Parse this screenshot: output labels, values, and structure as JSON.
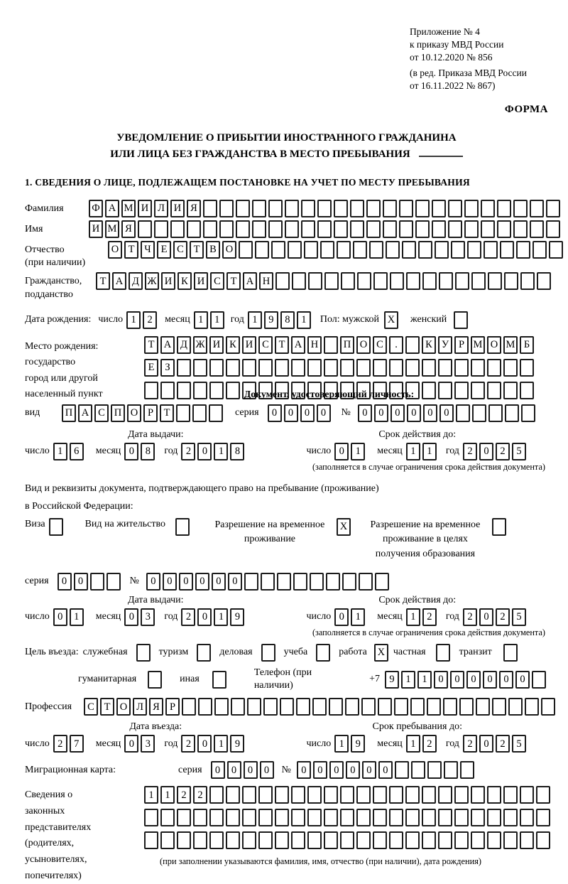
{
  "header": {
    "ref_lines": [
      "Приложение № 4",
      "к приказу МВД России",
      "от 10.12.2020 № 856",
      "(в ред. Приказа МВД России",
      "от 16.11.2022 № 867)"
    ],
    "form_label": "ФОРМА"
  },
  "title": {
    "line1": "УВЕДОМЛЕНИЕ О ПРИБЫТИИ ИНОСТРАННОГО ГРАЖДАНИНА",
    "line2": "ИЛИ ЛИЦА БЕЗ ГРАЖДАНСТВА В МЕСТО ПРЕБЫВАНИЯ"
  },
  "section1": {
    "title": "1. СВЕДЕНИЯ О ЛИЦЕ, ПОДЛЕЖАЩЕМ ПОСТАНОВКЕ НА УЧЕТ ПО МЕСТУ ПРЕБЫВАНИЯ"
  },
  "labels": {
    "day": "число",
    "month": "месяц",
    "year": "год",
    "series": "серия",
    "number": "№"
  },
  "surname": {
    "label": "Фамилия",
    "cells": {
      "chars": "ФАМИЛИЯ",
      "len": 29
    }
  },
  "given_name": {
    "label": "Имя",
    "cells": {
      "chars": "ИМЯ",
      "len": 29
    }
  },
  "patronymic": {
    "label_lines": [
      "Отчество",
      "(при наличии)"
    ],
    "cells": {
      "chars": "ОТЧЕСТВО",
      "len": 28
    }
  },
  "citizenship": {
    "label_lines": [
      "Гражданство,",
      "подданство"
    ],
    "cells": {
      "chars": "ТАДЖИКИСТАН",
      "len": 28
    }
  },
  "birth": {
    "label": "Дата рождения:",
    "day": "12",
    "month": "11",
    "year": "1981",
    "gender_label": "Пол: мужской",
    "male": {
      "chars": "X",
      "len": 1
    },
    "female_label": "женский",
    "female": {
      "chars": "",
      "len": 1
    }
  },
  "birthplace": {
    "label_lines": [
      "Место рождения:",
      "государство",
      "город или другой",
      "населенный пункт"
    ],
    "rows": [
      {
        "chars": "ТАДЖИКИСТАН ПОС. КУРМОМБ",
        "len": 24
      },
      {
        "chars": "ЕЗ",
        "len": 24
      },
      {
        "chars": "",
        "len": 24
      }
    ]
  },
  "identity_doc": {
    "heading": "Документ, удостоверяющий личность:",
    "kind_label": "вид",
    "kind": {
      "chars": "ПАСПОРТ",
      "len": 10
    },
    "series": {
      "chars": "0000",
      "len": 4
    },
    "number": {
      "chars": "000000",
      "len": 11
    },
    "issue_title": "Дата выдачи:",
    "issue": {
      "day": "16",
      "month": "08",
      "year": "2018"
    },
    "expiry_title": "Срок действия до:",
    "expiry": {
      "day": "01",
      "month": "11",
      "year": "2025"
    },
    "note": "(заполняется в случае ограничения срока действия документа)"
  },
  "residence": {
    "intro1": "Вид и реквизиты документа, подтверждающего право на пребывание (проживание)",
    "intro2": "в Российской Федерации:",
    "visa": {
      "label": "Виза",
      "value": {
        "chars": "",
        "len": 1
      }
    },
    "residence_permit": {
      "label": "Вид на жительство",
      "value": {
        "chars": "",
        "len": 1
      }
    },
    "rvp": {
      "label1": "Разрешение на временное",
      "label2": "проживание",
      "value": {
        "chars": "X",
        "len": 1
      }
    },
    "rvp_edu": {
      "label1": "Разрешение на временное",
      "label2": "проживание в целях",
      "label3": "получения образования",
      "value": {
        "chars": "",
        "len": 1
      }
    },
    "series": {
      "chars": "00",
      "len": 4
    },
    "number": {
      "chars": "000000",
      "len": 15
    },
    "issue_title": "Дата выдачи:",
    "issue": {
      "day": "01",
      "month": "03",
      "year": "2019"
    },
    "expiry_title": "Срок действия до:",
    "expiry": {
      "day": "01",
      "month": "12",
      "year": "2025"
    },
    "note": "(заполняется в случае ограничения срока действия документа)"
  },
  "purpose": {
    "label": "Цель въезда:",
    "options": [
      {
        "label": "служебная",
        "value": {
          "chars": "",
          "len": 1
        }
      },
      {
        "label": "туризм",
        "value": {
          "chars": "",
          "len": 1
        }
      },
      {
        "label": "деловая",
        "value": {
          "chars": "",
          "len": 1
        }
      },
      {
        "label": "учеба",
        "value": {
          "chars": "",
          "len": 1
        }
      },
      {
        "label": "работа",
        "value": {
          "chars": "X",
          "len": 1
        }
      },
      {
        "label": "частная",
        "value": {
          "chars": "",
          "len": 1
        }
      },
      {
        "label": "транзит",
        "value": {
          "chars": "",
          "len": 1
        }
      }
    ],
    "options2": [
      {
        "label": "гуманитарная",
        "value": {
          "chars": "",
          "len": 1
        }
      },
      {
        "label": "иная",
        "value": {
          "chars": "",
          "len": 1
        }
      }
    ],
    "phone_label": "Телефон (при наличии)",
    "phone_prefix": "+7",
    "phone": {
      "chars": "911000000",
      "len": 10
    }
  },
  "profession": {
    "label": "Профессия",
    "cells": {
      "chars": "СТОЛЯР",
      "len": 29
    }
  },
  "entry": {
    "issue_title": "Дата въезда:",
    "issue": {
      "day": "27",
      "month": "03",
      "year": "2019"
    },
    "expiry_title": "Срок пребывания до:",
    "expiry": {
      "day": "19",
      "month": "12",
      "year": "2025"
    }
  },
  "migration_card": {
    "label": "Миграционная карта:",
    "series": {
      "chars": "0000",
      "len": 4
    },
    "number": {
      "chars": "000000",
      "len": 11
    }
  },
  "legal": {
    "label_lines": [
      "Сведения о",
      "законных",
      "представителях",
      "(родителях,",
      "усыновителях,",
      "попечителях)"
    ],
    "rows": [
      {
        "chars": "1122",
        "len": 25
      },
      {
        "chars": "",
        "len": 25
      },
      {
        "chars": "",
        "len": 25
      }
    ],
    "caption": "(при заполнении указываются фамилия, имя, отчество (при наличии), дата рождения)"
  }
}
